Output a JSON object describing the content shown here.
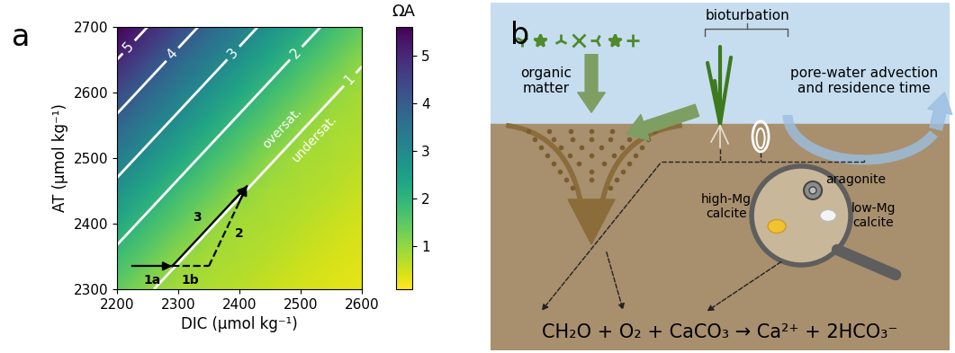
{
  "chart_data": {
    "type": "heatmap",
    "title": "a",
    "x_label": "DIC (µmol kg⁻¹)",
    "y_label": "AT (µmol kg⁻¹)",
    "x": [
      2200,
      2250,
      2300,
      2350,
      2400,
      2450,
      2500,
      2550,
      2600
    ],
    "y": [
      2300,
      2350,
      2400,
      2450,
      2500,
      2550,
      2600,
      2650,
      2700
    ],
    "cells": [
      [
        1.45,
        1.04,
        0.85,
        0.78,
        0.7,
        0.57,
        0.45,
        0.37,
        0.3
      ],
      [
        1.84,
        1.45,
        1.04,
        0.85,
        0.78,
        0.7,
        0.57,
        0.45,
        0.37
      ],
      [
        2.3,
        1.84,
        1.45,
        1.04,
        0.85,
        0.78,
        0.7,
        0.57,
        0.45
      ],
      [
        2.8,
        2.3,
        1.84,
        1.45,
        1.04,
        0.85,
        0.78,
        0.7,
        0.57
      ],
      [
        3.3,
        2.8,
        2.3,
        1.84,
        1.45,
        1.04,
        0.85,
        0.78,
        0.7
      ],
      [
        3.8,
        3.3,
        2.8,
        2.3,
        1.84,
        1.45,
        1.04,
        0.85,
        0.78
      ],
      [
        4.37,
        3.8,
        3.3,
        2.8,
        2.3,
        1.84,
        1.45,
        1.04,
        0.85
      ],
      [
        5.0,
        4.37,
        3.8,
        3.3,
        2.8,
        2.3,
        1.84,
        1.45,
        1.04
      ],
      [
        5.6,
        5.0,
        4.37,
        3.8,
        3.3,
        2.8,
        2.3,
        1.84,
        1.45
      ]
    ],
    "xlim": [
      2200,
      2600
    ],
    "ylim": [
      2300,
      2700
    ],
    "xticks": [
      2200,
      2300,
      2400,
      2500,
      2600
    ],
    "yticks": [
      2300,
      2400,
      2500,
      2600,
      2700
    ],
    "contour_levels": [
      1,
      2,
      3,
      4,
      5
    ],
    "colorbar_label": "ΩA",
    "colorbar_range": [
      0.1,
      5.6
    ],
    "colorbar_ticks": [
      1,
      2,
      3,
      4,
      5
    ],
    "annotations": [
      {
        "text": "oversat.",
        "x": 2470,
        "y": 2545
      },
      {
        "text": "undersat.",
        "x": 2522,
        "y": 2530
      }
    ],
    "paths": [
      {
        "name": "1a",
        "x": [
          2225,
          2290
        ],
        "y": [
          2335,
          2335
        ],
        "line_style": "solid",
        "marker": "arrow",
        "color": "#000000"
      },
      {
        "name": "1b",
        "x": [
          2290,
          2350
        ],
        "y": [
          2335,
          2335
        ],
        "line_style": "dashed",
        "marker": "none",
        "color": "#000000"
      },
      {
        "name": "2",
        "x": [
          2350,
          2412
        ],
        "y": [
          2335,
          2457
        ],
        "line_style": "dashed",
        "marker": "arrow",
        "color": "#000000"
      },
      {
        "name": "3",
        "x": [
          2290,
          2412
        ],
        "y": [
          2335,
          2457
        ],
        "line_style": "solid",
        "marker": "arrow",
        "color": "#000000"
      }
    ]
  },
  "diagram": {
    "title": "b",
    "labels": {
      "organic_matter": "organic\nmatter",
      "bioturbation": "bioturbation",
      "advection": "pore-water advection\nand residence time",
      "aragonite": "aragonite",
      "high_mg_calcite": "high-Mg\ncalcite",
      "low_mg_calcite": "low-Mg\ncalcite"
    },
    "equation": "CH₂O + O₂ + CaCO₃ → Ca²⁺ + 2HCO₃⁻"
  }
}
